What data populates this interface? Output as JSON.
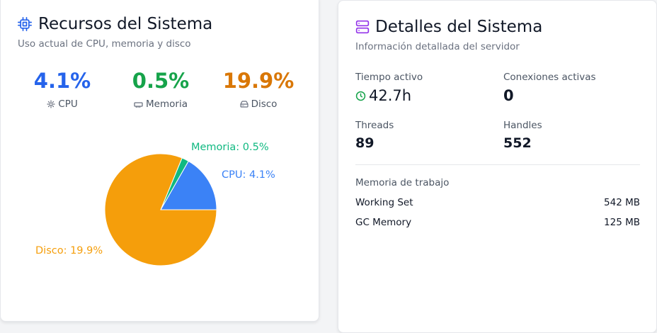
{
  "resources": {
    "title": "Recursos del Sistema",
    "subtitle": "Uso actual de CPU, memoria y disco",
    "stats": [
      {
        "value": "4.1%",
        "label": "CPU",
        "icon": "cpu-icon",
        "color": "#2563eb"
      },
      {
        "value": "0.5%",
        "label": "Memoria",
        "icon": "memory-icon",
        "color": "#16a34a"
      },
      {
        "value": "19.9%",
        "label": "Disco",
        "icon": "disk-icon",
        "color": "#d97706"
      }
    ],
    "pie": {
      "labels": {
        "memoria": "Memoria: 0.5%",
        "cpu": "CPU: 4.1%",
        "disco": "Disco: 19.9%"
      }
    }
  },
  "chart_data": {
    "type": "pie",
    "categories": [
      "CPU",
      "Memoria",
      "Disco"
    ],
    "values": [
      4.1,
      0.5,
      19.9
    ],
    "colors": [
      "#3b82f6",
      "#10b981",
      "#f59e0b"
    ]
  },
  "details": {
    "title": "Detalles del Sistema",
    "subtitle": "Información detallada del servidor",
    "uptime": {
      "label": "Tiempo activo",
      "value": "42.7h"
    },
    "connections": {
      "label": "Conexiones activas",
      "value": "0"
    },
    "threads": {
      "label": "Threads",
      "value": "89"
    },
    "handles": {
      "label": "Handles",
      "value": "552"
    },
    "memory_heading": "Memoria de trabajo",
    "memory_rows": [
      {
        "label": "Working Set",
        "value": "542 MB"
      },
      {
        "label": "GC Memory",
        "value": "125 MB"
      }
    ]
  },
  "colors": {
    "accent_blue": "#2563eb",
    "accent_purple": "#9333ea",
    "uptime_green": "#16a34a"
  }
}
